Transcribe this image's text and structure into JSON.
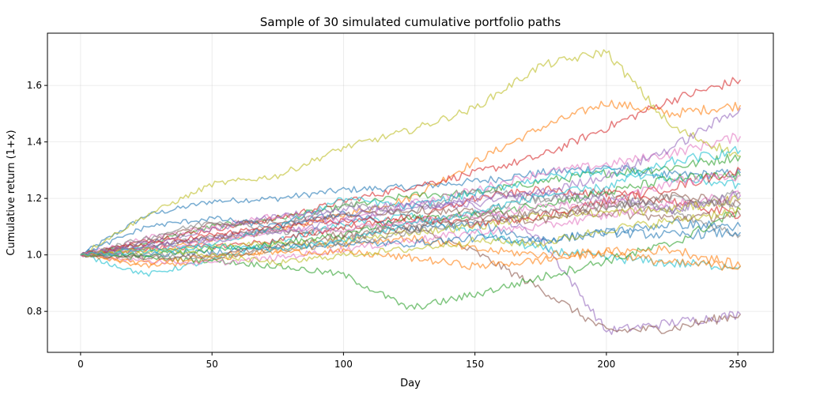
{
  "chart_data": {
    "type": "line",
    "title": "Sample of 30 simulated cumulative portfolio paths",
    "xlabel": "Day",
    "ylabel": "Cumulative return (1+x)",
    "xlim": [
      -12.6,
      263.5
    ],
    "ylim": [
      0.655,
      1.785
    ],
    "xticks": [
      0,
      50,
      100,
      150,
      200,
      250
    ],
    "yticks": [
      0.8,
      1.0,
      1.2,
      1.4,
      1.6
    ],
    "grid": true,
    "legend": "none",
    "colors": [
      "#1f77b4",
      "#ff7f0e",
      "#2ca02c",
      "#d62728",
      "#9467bd",
      "#8c564b",
      "#e377c2",
      "#7f7f7f",
      "#bcbd22",
      "#17becf"
    ],
    "series": [
      {
        "x": [
          0,
          25,
          50,
          75,
          100,
          125,
          150,
          175,
          200,
          225,
          251
        ],
        "values": [
          1.0,
          1.14,
          1.19,
          1.2,
          1.23,
          1.24,
          1.26,
          1.29,
          1.31,
          1.28,
          1.29
        ]
      },
      {
        "x": [
          0,
          25,
          50,
          75,
          100,
          125,
          150,
          175,
          200,
          225,
          251
        ],
        "values": [
          1.0,
          1.02,
          1.05,
          1.09,
          1.14,
          1.2,
          1.33,
          1.45,
          1.54,
          1.5,
          1.53
        ]
      },
      {
        "x": [
          0,
          25,
          50,
          75,
          100,
          125,
          150,
          175,
          200,
          225,
          251
        ],
        "values": [
          1.0,
          1.04,
          1.1,
          1.13,
          1.17,
          1.21,
          1.22,
          1.26,
          1.29,
          1.31,
          1.35
        ]
      },
      {
        "x": [
          0,
          25,
          50,
          75,
          100,
          125,
          150,
          175,
          200,
          225,
          251
        ],
        "values": [
          1.0,
          1.05,
          1.09,
          1.13,
          1.19,
          1.24,
          1.29,
          1.35,
          1.45,
          1.55,
          1.62
        ]
      },
      {
        "x": [
          0,
          25,
          50,
          75,
          100,
          125,
          150,
          175,
          200,
          225,
          251
        ],
        "values": [
          1.0,
          1.03,
          1.06,
          1.1,
          1.14,
          1.17,
          1.18,
          1.06,
          0.73,
          0.76,
          0.79
        ]
      },
      {
        "x": [
          0,
          25,
          50,
          75,
          100,
          125,
          150,
          175,
          200,
          225,
          251
        ],
        "values": [
          1.0,
          1.03,
          1.06,
          1.09,
          1.07,
          1.1,
          1.01,
          0.88,
          0.73,
          0.74,
          0.79
        ]
      },
      {
        "x": [
          0,
          25,
          50,
          75,
          100,
          125,
          150,
          175,
          200,
          225,
          251
        ],
        "values": [
          1.0,
          1.06,
          1.1,
          1.14,
          1.12,
          1.18,
          1.23,
          1.29,
          1.32,
          1.36,
          1.42
        ]
      },
      {
        "x": [
          0,
          25,
          50,
          75,
          100,
          125,
          150,
          175,
          200,
          225,
          251
        ],
        "values": [
          1.0,
          1.03,
          1.06,
          1.08,
          1.09,
          1.1,
          1.15,
          1.2,
          1.22,
          1.15,
          1.07
        ]
      },
      {
        "x": [
          0,
          25,
          50,
          75,
          100,
          125,
          150,
          175,
          200,
          225,
          251
        ],
        "values": [
          1.0,
          1.14,
          1.25,
          1.28,
          1.38,
          1.44,
          1.52,
          1.67,
          1.72,
          1.45,
          1.35
        ]
      },
      {
        "x": [
          0,
          25,
          50,
          75,
          100,
          125,
          150,
          175,
          200,
          225,
          251
        ],
        "values": [
          1.0,
          0.93,
          0.98,
          1.05,
          1.11,
          1.14,
          1.08,
          1.02,
          0.99,
          0.97,
          0.96
        ]
      },
      {
        "x": [
          0,
          25,
          50,
          75,
          100,
          125,
          150,
          175,
          200,
          225,
          251
        ],
        "values": [
          1.0,
          1.1,
          1.13,
          1.1,
          1.15,
          1.09,
          1.11,
          1.05,
          1.08,
          1.07,
          1.08
        ]
      },
      {
        "x": [
          0,
          25,
          50,
          75,
          100,
          125,
          150,
          175,
          200,
          225,
          251
        ],
        "values": [
          1.0,
          0.96,
          0.98,
          1.02,
          1.04,
          1.06,
          1.02,
          1.0,
          1.01,
          0.97,
          0.96
        ]
      },
      {
        "x": [
          0,
          25,
          50,
          75,
          100,
          125,
          150,
          175,
          200,
          225,
          251
        ],
        "values": [
          1.0,
          0.99,
          0.98,
          0.96,
          0.93,
          0.81,
          0.86,
          0.92,
          0.98,
          1.04,
          1.16
        ]
      },
      {
        "x": [
          0,
          25,
          50,
          75,
          100,
          125,
          150,
          175,
          200,
          225,
          251
        ],
        "values": [
          1.0,
          1.02,
          1.03,
          1.05,
          1.1,
          1.12,
          1.2,
          1.23,
          1.22,
          1.19,
          1.14
        ]
      },
      {
        "x": [
          0,
          25,
          50,
          75,
          100,
          125,
          150,
          175,
          200,
          225,
          251
        ],
        "values": [
          1.0,
          1.03,
          1.06,
          1.08,
          1.12,
          1.16,
          1.2,
          1.22,
          1.28,
          1.38,
          1.52
        ]
      },
      {
        "x": [
          0,
          25,
          50,
          75,
          100,
          125,
          150,
          175,
          200,
          225,
          251
        ],
        "values": [
          1.0,
          1.05,
          1.11,
          1.12,
          1.14,
          1.16,
          1.15,
          1.14,
          1.15,
          1.13,
          1.14
        ]
      },
      {
        "x": [
          0,
          25,
          50,
          75,
          100,
          125,
          150,
          175,
          200,
          225,
          251
        ],
        "values": [
          1.0,
          0.98,
          0.97,
          0.99,
          1.02,
          1.05,
          1.08,
          1.1,
          1.14,
          1.18,
          1.21
        ]
      },
      {
        "x": [
          0,
          25,
          50,
          75,
          100,
          125,
          150,
          175,
          200,
          225,
          251
        ],
        "values": [
          1.0,
          1.06,
          1.12,
          1.09,
          1.18,
          1.15,
          1.23,
          1.2,
          1.18,
          1.16,
          1.22
        ]
      },
      {
        "x": [
          0,
          25,
          50,
          75,
          100,
          125,
          150,
          175,
          200,
          225,
          251
        ],
        "values": [
          1.0,
          1.01,
          1.03,
          1.04,
          1.05,
          1.08,
          1.1,
          1.14,
          1.15,
          1.16,
          1.2
        ]
      },
      {
        "x": [
          0,
          25,
          50,
          75,
          100,
          125,
          150,
          175,
          200,
          225,
          251
        ],
        "values": [
          1.0,
          1.02,
          1.04,
          1.1,
          1.2,
          1.17,
          1.22,
          1.27,
          1.3,
          1.27,
          1.25
        ]
      },
      {
        "x": [
          0,
          25,
          50,
          75,
          100,
          125,
          150,
          175,
          200,
          225,
          251
        ],
        "values": [
          1.0,
          1.0,
          1.01,
          1.03,
          1.04,
          1.04,
          1.06,
          1.05,
          1.08,
          1.11,
          1.1
        ]
      },
      {
        "x": [
          0,
          25,
          50,
          75,
          100,
          125,
          150,
          175,
          200,
          225,
          251
        ],
        "values": [
          1.0,
          0.97,
          1.0,
          1.01,
          1.01,
          0.99,
          0.96,
          0.98,
          1.01,
          1.02,
          0.96
        ]
      },
      {
        "x": [
          0,
          25,
          50,
          75,
          100,
          125,
          150,
          175,
          200,
          225,
          251
        ],
        "values": [
          1.0,
          1.0,
          1.02,
          1.04,
          1.07,
          1.13,
          1.14,
          1.18,
          1.22,
          1.27,
          1.28
        ]
      },
      {
        "x": [
          0,
          25,
          50,
          75,
          100,
          125,
          150,
          175,
          200,
          225,
          251
        ],
        "values": [
          1.0,
          1.04,
          1.07,
          1.1,
          1.12,
          1.13,
          1.11,
          1.14,
          1.19,
          1.24,
          1.3
        ]
      },
      {
        "x": [
          0,
          25,
          50,
          75,
          100,
          125,
          150,
          175,
          200,
          225,
          251
        ],
        "values": [
          1.0,
          1.04,
          1.09,
          1.14,
          1.16,
          1.18,
          1.18,
          1.22,
          1.2,
          1.16,
          1.21
        ]
      },
      {
        "x": [
          0,
          25,
          50,
          75,
          100,
          125,
          150,
          175,
          200,
          225,
          251
        ],
        "values": [
          1.0,
          0.99,
          1.0,
          1.03,
          1.06,
          1.09,
          1.13,
          1.12,
          1.17,
          1.21,
          1.18
        ]
      },
      {
        "x": [
          0,
          25,
          50,
          75,
          100,
          125,
          150,
          175,
          200,
          225,
          251
        ],
        "values": [
          1.0,
          1.02,
          1.05,
          1.09,
          1.09,
          1.12,
          1.14,
          1.17,
          1.18,
          1.26,
          1.28
        ]
      },
      {
        "x": [
          0,
          25,
          50,
          75,
          100,
          125,
          150,
          175,
          200,
          225,
          251
        ],
        "values": [
          1.0,
          1.0,
          0.99,
          1.02,
          1.04,
          1.08,
          1.12,
          1.15,
          1.17,
          1.2,
          1.18
        ]
      },
      {
        "x": [
          0,
          25,
          50,
          75,
          100,
          125,
          150,
          175,
          200,
          225,
          251
        ],
        "values": [
          1.0,
          1.02,
          1.0,
          0.97,
          1.0,
          1.02,
          1.05,
          1.04,
          1.09,
          1.12,
          1.16
        ]
      },
      {
        "x": [
          0,
          25,
          50,
          75,
          100,
          125,
          150,
          175,
          200,
          225,
          251
        ],
        "values": [
          1.0,
          1.01,
          1.03,
          1.02,
          1.05,
          1.11,
          1.15,
          1.21,
          1.24,
          1.33,
          1.37
        ]
      }
    ]
  }
}
